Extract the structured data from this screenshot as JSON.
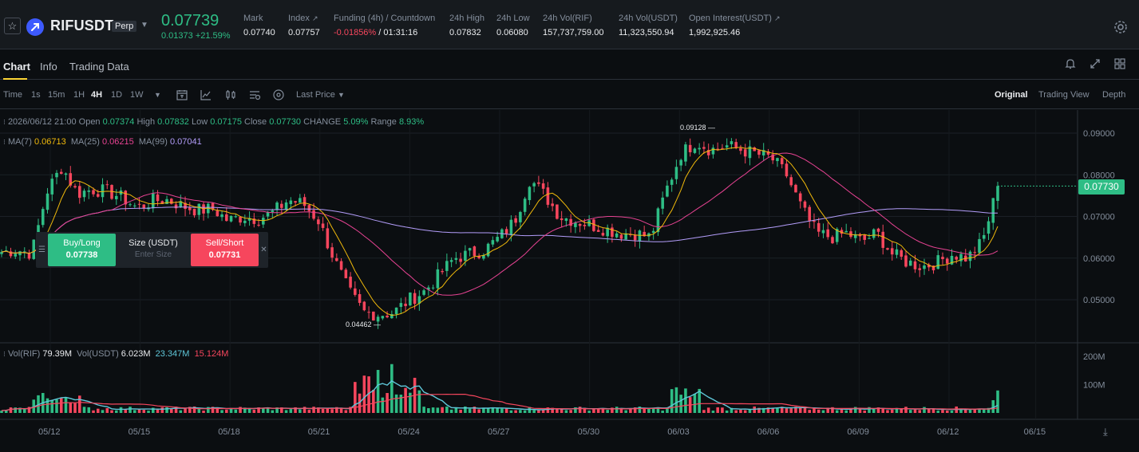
{
  "header": {
    "favorite_icon": "star-icon",
    "coin_icon": "rif-coin-icon",
    "symbol": "RIFUSDT",
    "badge": "Perp",
    "last_price": "0.07739",
    "change": "0.01373 +21.59%",
    "stats": [
      {
        "label": "Mark",
        "value": "0.07740"
      },
      {
        "label": "Index",
        "value": "0.07757"
      },
      {
        "label": "Funding (4h) / Countdown",
        "value_neg": "-0.01856%",
        "value": "/ 01:31:16"
      },
      {
        "label": "24h High",
        "value": "0.07832"
      },
      {
        "label": "24h Low",
        "value": "0.06080"
      },
      {
        "label": "24h Vol(RIF)",
        "value": "157,737,759.00"
      },
      {
        "label": "24h Vol(USDT)",
        "value": "11,323,550.94"
      },
      {
        "label": "Open Interest(USDT)",
        "value": "1,992,925.46"
      }
    ]
  },
  "tabs": {
    "items": [
      "Chart",
      "Info",
      "Trading Data"
    ],
    "active": "Chart"
  },
  "toolbar": {
    "intervals": [
      "Time",
      "1s",
      "15m",
      "1H",
      "4H",
      "1D",
      "1W"
    ],
    "active_interval": "4H",
    "price_type": "Last Price",
    "views": [
      "Original",
      "Trading View",
      "Depth"
    ],
    "active_view": "Original"
  },
  "legend": {
    "date": "2026/06/12 21:00",
    "open_label": "Open",
    "open": "0.07374",
    "high_label": "High",
    "high": "0.07832",
    "low_label": "Low",
    "low": "0.07175",
    "close_label": "Close",
    "close": "0.07730",
    "change_label": "CHANGE",
    "change": "5.09%",
    "range_label": "Range",
    "range": "8.93%",
    "ma7_label": "MA(7)",
    "ma7": "0.06713",
    "ma25_label": "MA(25)",
    "ma25": "0.06215",
    "ma99_label": "MA(99)",
    "ma99": "0.07041",
    "vol_label": "Vol(RIF)",
    "vol": "79.39M",
    "volusdt_label": "Vol(USDT)",
    "volusdt": "6.023M",
    "vol_ma1": "23.347M",
    "vol_ma2": "15.124M"
  },
  "order_panel": {
    "buy_label": "Buy/Long",
    "buy_price": "0.07738",
    "size_label": "Size (USDT)",
    "size_placeholder": "Enter Size",
    "sell_label": "Sell/Short",
    "sell_price": "0.07731"
  },
  "chart_data": {
    "type": "candlestick",
    "price_axis_ticks": [
      "0.09000",
      "0.08000",
      "0.07000",
      "0.06000",
      "0.05000"
    ],
    "volume_axis_ticks": [
      "200M",
      "100M"
    ],
    "x_tick_labels": [
      "05/12",
      "05/15",
      "05/18",
      "05/21",
      "05/24",
      "05/27",
      "05/30",
      "06/03",
      "06/06",
      "06/09",
      "06/12",
      "06/15"
    ],
    "current_price": "0.07730",
    "high_marker": "0.09128",
    "low_marker": "0.04462",
    "colors": {
      "up": "#2ebd85",
      "down": "#f6465d",
      "ma7": "#f0b90b",
      "ma25": "#e84393",
      "ma99": "#b39dfa",
      "vol_ma1": "#5fc7d9",
      "vol_ma2": "#f6465d"
    },
    "anchor_closes": [
      0.0615,
      0.062,
      0.0612,
      0.076,
      0.082,
      0.0755,
      0.0765,
      0.076,
      0.0745,
      0.072,
      0.0738,
      0.074,
      0.0725,
      0.0715,
      0.0718,
      0.069,
      0.07,
      0.0695,
      0.071,
      0.074,
      0.073,
      0.069,
      0.06,
      0.052,
      0.047,
      0.0465,
      0.047,
      0.05,
      0.052,
      0.056,
      0.06,
      0.061,
      0.062,
      0.065,
      0.069,
      0.079,
      0.075,
      0.07,
      0.069,
      0.068,
      0.067,
      0.066,
      0.066,
      0.065,
      0.076,
      0.085,
      0.088,
      0.086,
      0.087,
      0.086,
      0.085,
      0.084,
      0.08,
      0.072,
      0.066,
      0.065,
      0.066,
      0.064,
      0.066,
      0.061,
      0.059,
      0.058,
      0.059,
      0.061,
      0.06,
      0.064,
      0.0773
    ],
    "high_volume_regions": [
      "05/11-05/13",
      "05/22-05/26",
      "06/02-06/04",
      "06/12"
    ]
  }
}
